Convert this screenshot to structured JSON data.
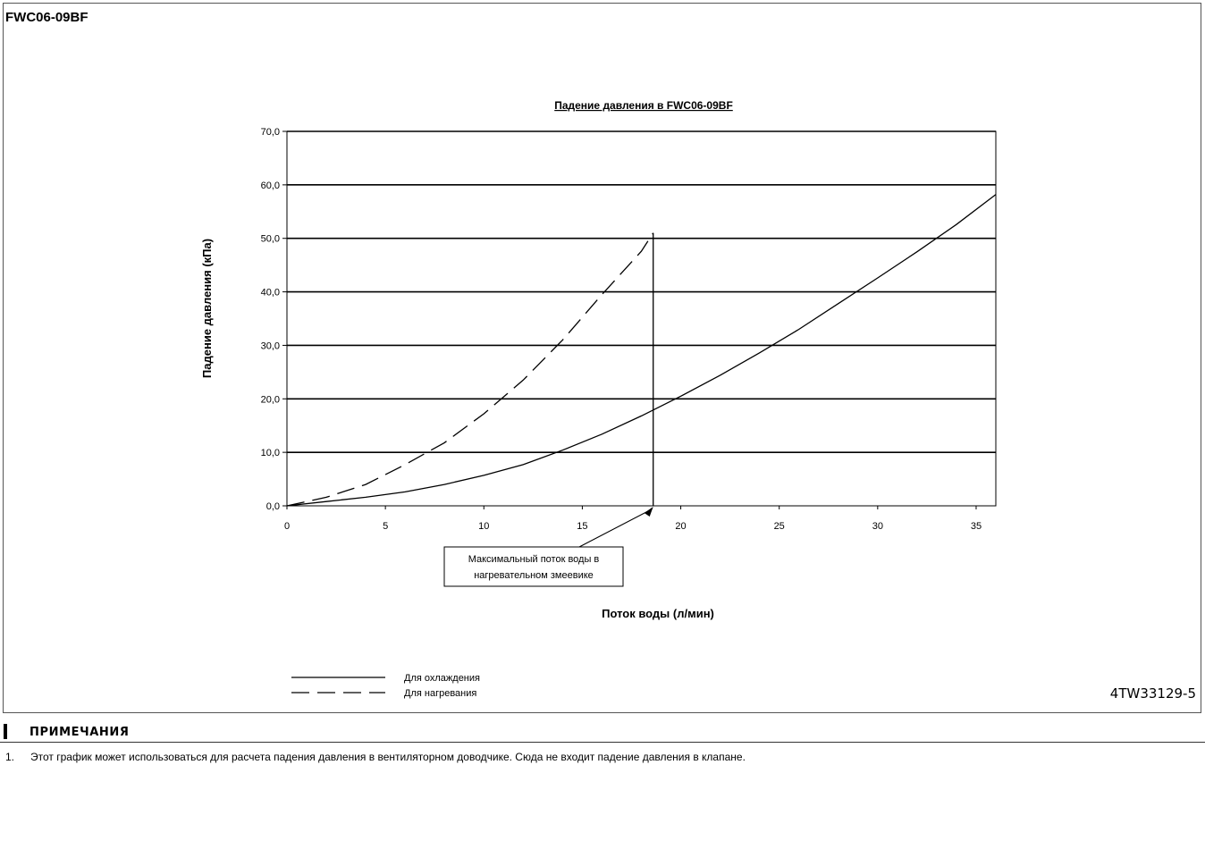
{
  "header": {
    "model": "FWC06-09BF",
    "doc_code": "4TW33129-5"
  },
  "notes": {
    "title": "ПРИМЕЧАНИЯ",
    "items": [
      {
        "num": "1.",
        "text": "Этот график может использоваться для расчета падения давления в вентиляторном доводчике. Сюда не входит падение давления в клапане."
      }
    ]
  },
  "chart_data": {
    "type": "line",
    "title": "Падение давления в FWC06-09BF",
    "xlabel": "Поток воды (л/мин)",
    "ylabel": "Падение давления (кПа)",
    "xlim": [
      0,
      36
    ],
    "ylim": [
      0,
      70
    ],
    "x_ticks": [
      "0",
      "5",
      "10",
      "15",
      "20",
      "25",
      "30",
      "35"
    ],
    "y_ticks": [
      "0,0",
      "10,0",
      "20,0",
      "30,0",
      "40,0",
      "50,0",
      "60,0",
      "70,0"
    ],
    "grid": "horizontal",
    "series": [
      {
        "name": "Для охлаждения",
        "style": "solid",
        "x": [
          0,
          2,
          4,
          6,
          8,
          10,
          12,
          14,
          16,
          18,
          20,
          22,
          24,
          26,
          28,
          30,
          32,
          34,
          36
        ],
        "y": [
          0,
          0.8,
          1.6,
          2.6,
          4.0,
          5.7,
          7.7,
          10.4,
          13.4,
          16.8,
          20.5,
          24.4,
          28.6,
          33.0,
          37.8,
          42.6,
          47.5,
          52.6,
          58.2
        ]
      },
      {
        "name": "Для нагревания",
        "style": "dashed",
        "x": [
          0,
          2,
          4,
          6,
          8,
          10,
          12,
          14,
          16,
          18,
          18.6
        ],
        "y": [
          0,
          1.6,
          4.0,
          7.7,
          11.8,
          17.2,
          23.5,
          31.0,
          39.5,
          47.6,
          51.0
        ]
      }
    ],
    "annotation": {
      "text_line1": "Максимальный поток воды в",
      "text_line2": "нагревательном змеевике",
      "x": 18.6
    },
    "legend": "bottom-left, below chart"
  }
}
